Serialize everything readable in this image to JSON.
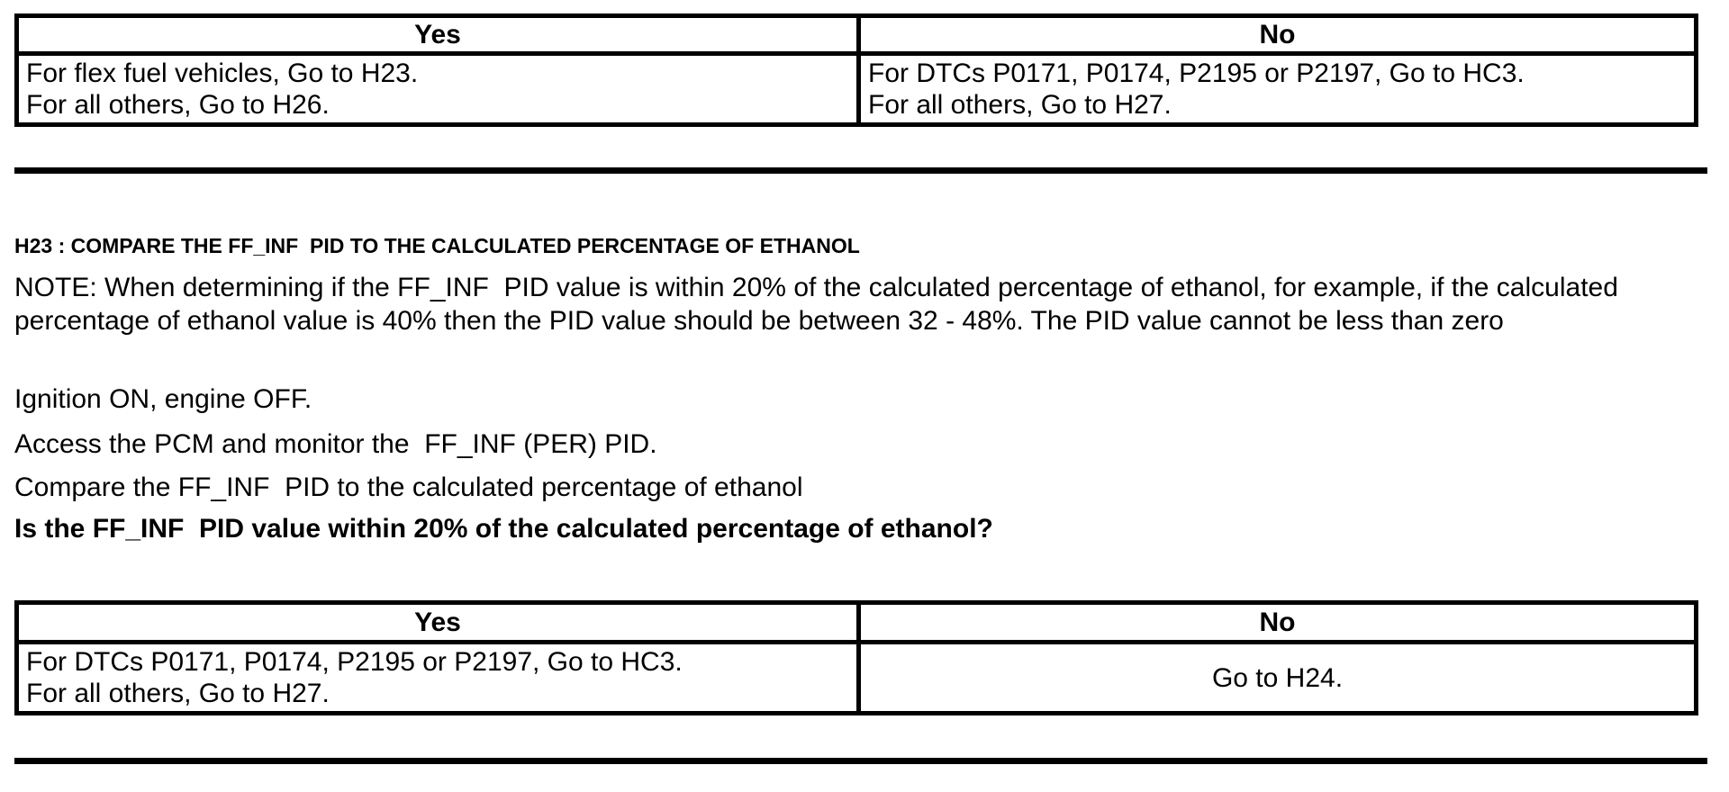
{
  "colors": {
    "ink": "#000000",
    "background": "#ffffff",
    "table_border": "#000000"
  },
  "result_table_top": {
    "header_yes": "Yes",
    "header_no": "No",
    "yes_lines": [
      "For flex fuel vehicles, Go to H23.",
      "For all others, Go to H26."
    ],
    "no_lines": [
      "For DTCs P0171, P0174, P2195 or P2197, Go to HC3.",
      "For all others, Go to H27."
    ]
  },
  "step": {
    "heading": "H23 : COMPARE THE FF_INF  PID TO THE CALCULATED PERCENTAGE OF ETHANOL",
    "note": "NOTE: When determining if the FF_INF  PID value is within 20% of the calculated percentage of ethanol, for example, if the calculated percentage of ethanol value is 40% then the PID value should be between 32 - 48%. The PID value cannot be less than zero",
    "instructions": [
      "Ignition ON, engine OFF.",
      "Access the PCM and monitor the  FF_INF (PER) PID.",
      "Compare the FF_INF  PID to the calculated percentage of ethanol"
    ],
    "question": "Is the FF_INF  PID value within 20% of the calculated percentage of ethanol?"
  },
  "result_table_bottom": {
    "header_yes": "Yes",
    "header_no": "No",
    "yes_lines": [
      "For DTCs P0171, P0174, P2195 or P2197, Go to HC3.",
      "For all others, Go to H27."
    ],
    "no_lines": [
      "Go to H24."
    ]
  }
}
